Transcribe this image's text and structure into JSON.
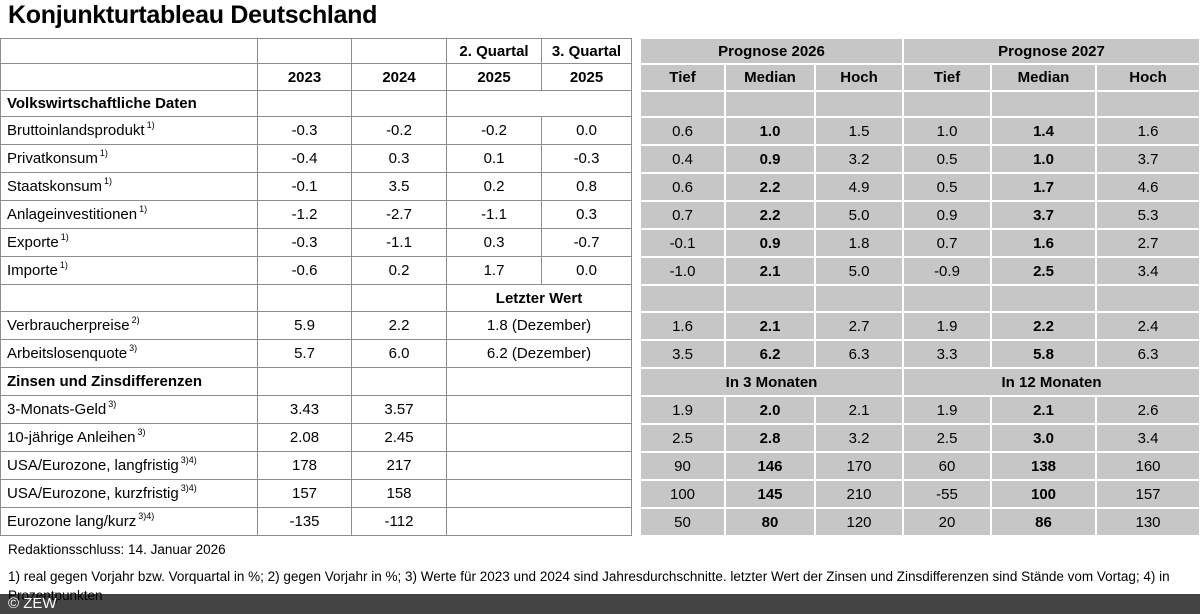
{
  "title": "Konjunkturtableau Deutschland",
  "table": {
    "header": {
      "q2_top": "2. Quartal",
      "q3_top": "3. Quartal",
      "years": [
        "2023",
        "2024",
        "2025",
        "2025"
      ],
      "prognose_2026": "Prognose 2026",
      "prognose_2027": "Prognose 2027",
      "subheaders": [
        "Tief",
        "Median",
        "Hoch",
        "Tief",
        "Median",
        "Hoch"
      ]
    },
    "section1": "Volkswirtschaftliche Daten",
    "rows1": [
      {
        "label": "Bruttoinlandsprodukt",
        "sup": "1)",
        "values": [
          "-0.3",
          "-0.2",
          "-0.2",
          "0.0"
        ],
        "prognose": [
          "0.6",
          "1.0",
          "1.5",
          "1.0",
          "1.4",
          "1.6"
        ]
      },
      {
        "label": "Privatkonsum",
        "sup": "1)",
        "values": [
          "-0.4",
          "0.3",
          "0.1",
          "-0.3"
        ],
        "prognose": [
          "0.4",
          "0.9",
          "3.2",
          "0.5",
          "1.0",
          "3.7"
        ]
      },
      {
        "label": "Staatskonsum",
        "sup": "1)",
        "values": [
          "-0.1",
          "3.5",
          "0.2",
          "0.8"
        ],
        "prognose": [
          "0.6",
          "2.2",
          "4.9",
          "0.5",
          "1.7",
          "4.6"
        ]
      },
      {
        "label": "Anlageinvestitionen",
        "sup": "1)",
        "values": [
          "-1.2",
          "-2.7",
          "-1.1",
          "0.3"
        ],
        "prognose": [
          "0.7",
          "2.2",
          "5.0",
          "0.9",
          "3.7",
          "5.3"
        ]
      },
      {
        "label": "Exporte",
        "sup": "1)",
        "values": [
          "-0.3",
          "-1.1",
          "0.3",
          "-0.7"
        ],
        "prognose": [
          "-0.1",
          "0.9",
          "1.8",
          "0.7",
          "1.6",
          "2.7"
        ]
      },
      {
        "label": "Importe",
        "sup": "1)",
        "values": [
          "-0.6",
          "0.2",
          "1.7",
          "0.0"
        ],
        "prognose": [
          "-1.0",
          "2.1",
          "5.0",
          "-0.9",
          "2.5",
          "3.4"
        ]
      }
    ],
    "letzter_wert": "Letzter Wert",
    "rows2": [
      {
        "label": "Verbraucherpreise",
        "sup": "2)",
        "values": [
          "5.9",
          "2.2",
          "1.8 (Dezember)"
        ],
        "prognose": [
          "1.6",
          "2.1",
          "2.7",
          "1.9",
          "2.2",
          "2.4"
        ]
      },
      {
        "label": "Arbeitslosenquote",
        "sup": "3)",
        "values": [
          "5.7",
          "6.0",
          "6.2 (Dezember)"
        ],
        "prognose": [
          "3.5",
          "6.2",
          "6.3",
          "3.3",
          "5.8",
          "6.3"
        ]
      }
    ],
    "section2": {
      "label": "Zinsen und Zinsdifferenzen",
      "left": "In 3 Monaten",
      "right": "In 12 Monaten"
    },
    "rows3": [
      {
        "label": "3-Monats-Geld",
        "sup": "3)",
        "values": [
          "3.43",
          "3.57"
        ],
        "prognose": [
          "1.9",
          "2.0",
          "2.1",
          "1.9",
          "2.1",
          "2.6"
        ]
      },
      {
        "label": "10-jährige Anleihen",
        "sup": "3)",
        "values": [
          "2.08",
          "2.45"
        ],
        "prognose": [
          "2.5",
          "2.8",
          "3.2",
          "2.5",
          "3.0",
          "3.4"
        ]
      },
      {
        "label": "USA/Eurozone, langfristig",
        "sup": "3)4)",
        "values": [
          "178",
          "217"
        ],
        "prognose": [
          "90",
          "146",
          "170",
          "60",
          "138",
          "160"
        ]
      },
      {
        "label": "USA/Eurozone, kurzfristig",
        "sup": "3)4)",
        "values": [
          "157",
          "158"
        ],
        "prognose": [
          "100",
          "145",
          "210",
          "-55",
          "100",
          "157"
        ]
      },
      {
        "label": "Eurozone lang/kurz",
        "sup": "3)4)",
        "values": [
          "-135",
          "-112"
        ],
        "prognose": [
          "50",
          "80",
          "120",
          "20",
          "86",
          "130"
        ]
      }
    ]
  },
  "footer": {
    "redaktionsschluss": "Redaktionsschluss: 14. Januar 2026",
    "footnote_line1": "1) real gegen Vorjahr bzw. Vorquartal in %; 2) gegen Vorjahr in %; 3) Werte für 2023 und 2024 sind Jahresdurchschnitte. letzter Wert der Zinsen und Zinsdifferenzen sind Stände vom Vortag; 4) in",
    "footnote_line2": "Prozentpunkten",
    "copyright": "© ZEW"
  },
  "colors": {
    "gray_cell": "#c6c6c6",
    "grid_line": "#8e8e8e",
    "footer_bar": "#434343"
  }
}
